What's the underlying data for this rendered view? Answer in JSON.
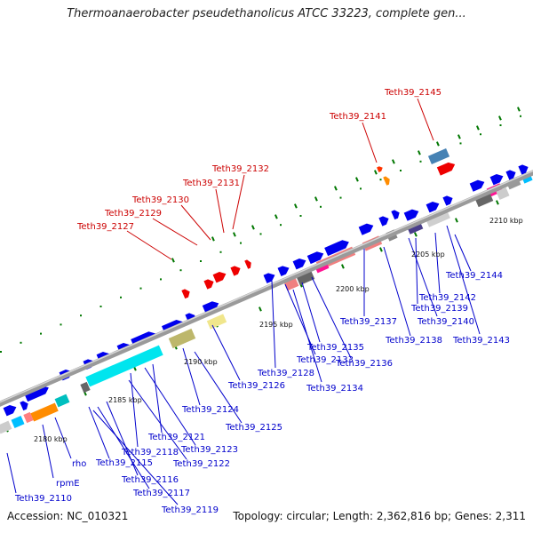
{
  "header": {
    "title": "Thermoanaerobacter pseudethanolicus ATCC 33223, complete gen..."
  },
  "footer": {
    "accession": "Accession: NC_010321",
    "topology": "Topology: circular; Length: 2,362,816 bp; Genes: 2,311"
  },
  "colors": {
    "forward": "#0000ee",
    "highlight": "#ee0000",
    "label_blue": "#0000cc",
    "label_red": "#cc0000",
    "tick": "#007700",
    "backbone": "#888888"
  },
  "ticks": [
    "2180 kbp",
    "2185 kbp",
    "2190 kbp",
    "2195 kbp",
    "2200 kbp",
    "2205 kbp",
    "2210 kbp"
  ],
  "labels_red": [
    "Teth39_2145",
    "Teth39_2141",
    "Teth39_2132",
    "Teth39_2131",
    "Teth39_2130",
    "Teth39_2129",
    "Teth39_2127"
  ],
  "labels_blue": [
    "Teth39_2144",
    "Teth39_2142",
    "Teth39_2143",
    "Teth39_2139",
    "Teth39_2140",
    "Teth39_2137",
    "Teth39_2138",
    "Teth39_2135",
    "Teth39_2136",
    "Teth39_2133",
    "Teth39_2128",
    "Teth39_2134",
    "Teth39_2126",
    "Teth39_2124",
    "Teth39_2125",
    "Teth39_2121",
    "Teth39_2123",
    "Teth39_2118",
    "Teth39_2122",
    "Teth39_2115",
    "Teth39_2116",
    "Teth39_2117",
    "Teth39_2119",
    "rho",
    "rpmE",
    "Teth39_2110"
  ]
}
